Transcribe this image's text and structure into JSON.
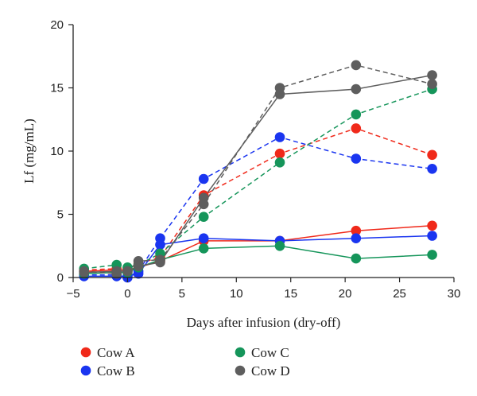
{
  "chart_data": {
    "type": "line",
    "xlabel": "Days after infusion (dry-off)",
    "ylabel": "Lf (mg/mL)",
    "xlim": [
      -5,
      30
    ],
    "ylim": [
      0,
      20
    ],
    "xticks": [
      -5,
      0,
      5,
      10,
      15,
      20,
      25,
      30
    ],
    "yticks": [
      0,
      5,
      10,
      15,
      20
    ],
    "xtick_labels": [
      "−5",
      "0",
      "5",
      "10",
      "15",
      "20",
      "25",
      "30"
    ],
    "ytick_labels": [
      "0",
      "5",
      "10",
      "15",
      "20"
    ],
    "grid": false,
    "legend_position": "bottom",
    "series": [
      {
        "name": "Cow A",
        "color": "#f0291a",
        "solid": [
          [
            -4,
            0.5
          ],
          [
            -1,
            0.6
          ],
          [
            0,
            0.6
          ],
          [
            1,
            0.8
          ],
          [
            3,
            1.3
          ],
          [
            7,
            2.9
          ],
          [
            14,
            2.9
          ],
          [
            21,
            3.7
          ],
          [
            28,
            4.1
          ]
        ],
        "dashed": [
          [
            -4,
            0.6
          ],
          [
            -1,
            0.7
          ],
          [
            0,
            0.7
          ],
          [
            1,
            1.1
          ],
          [
            3,
            1.6
          ],
          [
            7,
            6.5
          ],
          [
            14,
            9.8
          ],
          [
            21,
            11.8
          ],
          [
            28,
            9.7
          ]
        ]
      },
      {
        "name": "Cow B",
        "color": "#1a35f0",
        "solid": [
          [
            -4,
            0.1
          ],
          [
            -1,
            0.1
          ],
          [
            0,
            0.1
          ],
          [
            1,
            0.3
          ],
          [
            3,
            2.6
          ],
          [
            7,
            3.1
          ],
          [
            14,
            2.9
          ],
          [
            21,
            3.1
          ],
          [
            28,
            3.3
          ]
        ],
        "dashed": [
          [
            -4,
            0.2
          ],
          [
            -1,
            0.2
          ],
          [
            0,
            0.0
          ],
          [
            1,
            0.5
          ],
          [
            3,
            3.1
          ],
          [
            7,
            7.8
          ],
          [
            14,
            11.1
          ],
          [
            21,
            9.4
          ],
          [
            28,
            8.6
          ]
        ]
      },
      {
        "name": "Cow C",
        "color": "#15955a",
        "solid": [
          [
            -4,
            0.3
          ],
          [
            -1,
            0.4
          ],
          [
            0,
            0.4
          ],
          [
            1,
            0.8
          ],
          [
            3,
            1.4
          ],
          [
            7,
            2.3
          ],
          [
            14,
            2.5
          ],
          [
            21,
            1.5
          ],
          [
            28,
            1.8
          ]
        ],
        "dashed": [
          [
            -4,
            0.7
          ],
          [
            -1,
            1.0
          ],
          [
            0,
            0.8
          ],
          [
            1,
            1.0
          ],
          [
            3,
            1.9
          ],
          [
            7,
            4.8
          ],
          [
            14,
            9.1
          ],
          [
            21,
            12.9
          ],
          [
            28,
            14.9
          ]
        ]
      },
      {
        "name": "Cow D",
        "color": "#5e5e5e",
        "solid": [
          [
            -4,
            0.4
          ],
          [
            -1,
            0.5
          ],
          [
            0,
            0.5
          ],
          [
            1,
            0.9
          ],
          [
            3,
            1.2
          ],
          [
            7,
            6.3
          ],
          [
            14,
            14.5
          ],
          [
            21,
            14.9
          ],
          [
            28,
            16.0
          ]
        ],
        "dashed": [
          [
            -4,
            0.5
          ],
          [
            -1,
            0.3
          ],
          [
            0,
            0.5
          ],
          [
            1,
            1.3
          ],
          [
            3,
            1.4
          ],
          [
            7,
            5.8
          ],
          [
            14,
            15.0
          ],
          [
            21,
            16.8
          ],
          [
            28,
            15.3
          ]
        ]
      }
    ]
  }
}
